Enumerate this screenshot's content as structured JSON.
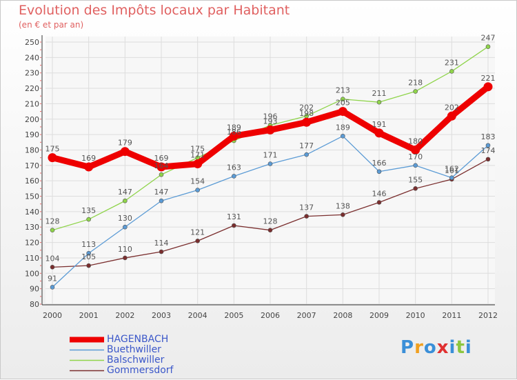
{
  "chart_data": {
    "type": "line",
    "title": "Evolution des Impôts locaux par Habitant",
    "subtitle": "(en € et par an)",
    "xlabel": "",
    "ylabel": "",
    "ylim": [
      80,
      250
    ],
    "yticks": [
      80,
      90,
      100,
      110,
      120,
      130,
      140,
      150,
      160,
      170,
      180,
      190,
      200,
      210,
      220,
      230,
      240,
      250
    ],
    "categories": [
      "2000",
      "2001",
      "2002",
      "2003",
      "2004",
      "2005",
      "2006",
      "2007",
      "2008",
      "2009",
      "2010",
      "2011",
      "2012"
    ],
    "grid": true,
    "legend": "bottom-left",
    "series": [
      {
        "name": "HAGENBACH",
        "color": "#ee0000",
        "values": [
          175,
          169,
          179,
          169,
          171,
          189,
          193,
          198,
          205,
          191,
          180,
          202,
          221
        ]
      },
      {
        "name": "Buethwiller",
        "color": "#5b9bd5",
        "values": [
          91,
          113,
          130,
          147,
          154,
          163,
          171,
          177,
          189,
          166,
          170,
          162,
          183
        ]
      },
      {
        "name": "Balschwiller",
        "color": "#8fd44a",
        "values": [
          128,
          135,
          147,
          164,
          175,
          186,
          196,
          202,
          213,
          211,
          218,
          231,
          247
        ]
      },
      {
        "name": "Gommersdorf",
        "color": "#7a2e2e",
        "values": [
          104,
          105,
          110,
          114,
          121,
          131,
          128,
          137,
          138,
          146,
          155,
          161,
          174
        ]
      }
    ]
  },
  "logo": {
    "letters": [
      "P",
      "r",
      "o",
      "x",
      "i",
      "t",
      "i"
    ],
    "colors": [
      "#3a8fd8",
      "#f0a020",
      "#3a8fd8",
      "#e03030",
      "#3a8fd8",
      "#8cc63f",
      "#3a8fd8"
    ]
  }
}
